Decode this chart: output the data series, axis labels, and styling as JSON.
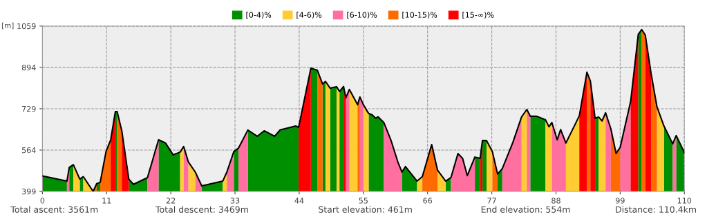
{
  "chart_data": {
    "type": "area",
    "ylabel": "[m]",
    "xlim": [
      0,
      110
    ],
    "xticks": [
      0,
      11,
      22,
      33,
      44,
      55,
      66,
      77,
      88,
      99,
      110
    ],
    "ylim": [
      399,
      1059
    ],
    "yticks": [
      399,
      564,
      729,
      894,
      1059
    ],
    "grid": true,
    "legend": "top",
    "annotations": [
      "Total ascent: 3561m",
      "Total descent: 3469m",
      "Start elevation: 461m",
      "End elevation: 554m",
      "Distance: 110.4km"
    ],
    "series": [
      {
        "name": "[0-4)%",
        "color": "#008f00",
        "x": [
          0,
          4.2,
          null,
          4.6,
          5.3,
          null,
          6.4,
          7.0,
          null,
          9.3,
          9.9,
          null,
          12.5,
          12.8,
          null,
          14.8,
          15.6,
          18.0,
          null,
          19.9,
          21.1,
          22.4,
          23.6,
          null,
          27.3,
          30.9,
          null,
          32.8,
          33.6,
          null,
          35.2,
          36.8,
          38.0,
          39.8,
          40.7,
          43.4,
          43.9,
          null,
          46.0,
          47.1,
          null,
          48.0,
          48.5,
          null,
          49.3,
          50.4,
          null,
          50.9,
          51.6,
          null,
          55.9,
          56.5,
          57.1,
          57.5,
          58.5,
          null,
          61.6,
          62.2,
          64.2,
          null,
          69.1,
          70.0,
          null,
          74.1,
          75.0,
          null,
          75.4,
          76.1,
          null,
          78.0,
          78.8,
          null,
          83.6,
          84.7,
          86.2,
          null,
          94.7,
          95.3,
          null,
          102.1,
          102.7,
          null,
          106.5,
          108.0,
          null,
          108.6,
          110.0
        ],
        "values": [
          461,
          440,
          null,
          495,
          506,
          null,
          448,
          458,
          null,
          430,
          435,
          null,
          718,
          718,
          null,
          448,
          427,
          454,
          null,
          605,
          592,
          545,
          556,
          null,
          421,
          440,
          null,
          558,
          572,
          null,
          644,
          619,
          641,
          619,
          644,
          660,
          655,
          null,
          891,
          883,
          null,
          828,
          838,
          null,
          811,
          817,
          null,
          798,
          818,
          null,
          710,
          705,
          691,
          697,
          674,
          null,
          476,
          498,
          440,
          null,
          440,
          454,
          null,
          536,
          531,
          null,
          602,
          602,
          null,
          468,
          490,
          null,
          699,
          699,
          685,
          null,
          691,
          696,
          null,
          1026,
          1045,
          null,
          660,
          589,
          null,
          622,
          554
        ]
      },
      {
        "name": "[4-6)%",
        "color": "#ffcc33",
        "x": [
          5.3,
          6.4,
          null,
          7.0,
          8.7,
          null,
          23.6,
          24.2,
          null,
          25.0,
          26.2,
          null,
          30.9,
          31.6,
          null,
          48.5,
          49.3,
          null,
          50.4,
          50.9,
          null,
          52.6,
          54.0,
          null,
          55.0,
          55.9,
          null,
          64.2,
          65.1,
          null,
          67.7,
          69.1,
          null,
          76.1,
          77.1,
          null,
          82.1,
          83.0,
          null,
          86.2,
          86.8,
          87.3,
          null,
          89.7,
          90.8,
          92.0,
          null,
          95.3,
          95.9,
          96.5,
          null,
          105.3,
          106.5
        ],
        "values": [
          506,
          448,
          null,
          458,
          399,
          null,
          556,
          578,
          null,
          517,
          476,
          null,
          440,
          476,
          null,
          838,
          811,
          null,
          817,
          798,
          null,
          806,
          745,
          null,
          745,
          710,
          null,
          440,
          458,
          null,
          484,
          440,
          null,
          602,
          558,
          null,
          696,
          726,
          null,
          685,
          657,
          674,
          null,
          592,
          644,
          701,
          null,
          696,
          680,
          713,
          null,
          737,
          660
        ]
      },
      {
        "name": "[6-10)%",
        "color": "#ff6f9f",
        "x": [
          4.2,
          4.6,
          null,
          18.0,
          19.9,
          null,
          24.2,
          25.0,
          null,
          26.2,
          27.3,
          null,
          31.6,
          32.8,
          null,
          33.6,
          35.2,
          null,
          52.0,
          52.6,
          null,
          54.4,
          55.0,
          null,
          58.5,
          59.7,
          60.9,
          61.6,
          null,
          70.0,
          71.2,
          72.0,
          72.8,
          74.1,
          null,
          78.8,
          80.6,
          82.1,
          null,
          83.0,
          83.6,
          null,
          87.3,
          88.2,
          88.8,
          89.7,
          null,
          96.5,
          97.4,
          null,
          99.0,
          100.8,
          null,
          108.0,
          108.6
        ],
        "values": [
          440,
          495,
          null,
          454,
          605,
          null,
          578,
          517,
          null,
          476,
          421,
          null,
          476,
          558,
          null,
          572,
          644,
          null,
          773,
          806,
          null,
          776,
          745,
          null,
          674,
          605,
          517,
          476,
          null,
          454,
          550,
          531,
          462,
          536,
          null,
          490,
          594,
          696,
          null,
          726,
          699,
          null,
          674,
          605,
          646,
          592,
          null,
          713,
          649,
          null,
          575,
          759,
          null,
          589,
          622
        ]
      },
      {
        "name": "[10-15)%",
        "color": "#ff6a00",
        "x": [
          8.7,
          9.3,
          null,
          9.9,
          10.9,
          11.7,
          null,
          12.8,
          13.6,
          null,
          47.1,
          48.0,
          null,
          54.0,
          54.4,
          null,
          65.1,
          66.7,
          67.7,
          null,
          77.1,
          78.0,
          null,
          93.3,
          93.9,
          null,
          97.4,
          98.3,
          99.0,
          null,
          102.7,
          103.3,
          null,
          104.3,
          105.3
        ],
        "values": [
          399,
          430,
          null,
          435,
          558,
          605,
          null,
          718,
          641,
          null,
          883,
          828,
          null,
          745,
          776,
          null,
          458,
          586,
          484,
          null,
          558,
          468,
          null,
          875,
          839,
          null,
          649,
          550,
          575,
          null,
          1045,
          1023,
          null,
          869,
          737
        ]
      },
      {
        "name": "[15-∞)%",
        "color": "#ff0000",
        "x": [
          11.7,
          12.5,
          null,
          13.6,
          14.8,
          null,
          43.9,
          46.0,
          null,
          51.6,
          52.0,
          null,
          75.0,
          75.4,
          null,
          92.0,
          93.3,
          null,
          93.9,
          94.7,
          null,
          100.8,
          102.1,
          null,
          103.3,
          104.3
        ],
        "values": [
          605,
          718,
          null,
          641,
          448,
          null,
          655,
          891,
          null,
          818,
          773,
          null,
          531,
          602,
          null,
          701,
          875,
          null,
          839,
          691,
          null,
          759,
          1026,
          null,
          1023,
          869
        ]
      },
      {
        "color": "#000000",
        "type": "line",
        "x": [
          0,
          4.2,
          4.6,
          5.3,
          6.4,
          7.0,
          8.7,
          9.3,
          9.9,
          10.9,
          11.7,
          12.5,
          12.8,
          13.6,
          14.8,
          15.6,
          18.0,
          19.9,
          21.1,
          22.4,
          23.6,
          24.2,
          25.0,
          26.2,
          27.3,
          30.9,
          31.6,
          32.8,
          33.6,
          35.2,
          36.8,
          38.0,
          39.8,
          40.7,
          43.4,
          43.9,
          46.0,
          47.1,
          48.0,
          48.5,
          49.3,
          50.4,
          50.9,
          51.6,
          52.0,
          52.6,
          54.0,
          54.4,
          55.0,
          55.9,
          56.5,
          57.1,
          57.5,
          58.5,
          59.7,
          60.9,
          61.6,
          62.2,
          64.2,
          65.1,
          66.7,
          67.7,
          69.1,
          70.0,
          71.2,
          72.0,
          72.8,
          74.1,
          75.0,
          75.4,
          76.1,
          77.1,
          78.0,
          78.8,
          80.6,
          82.1,
          83.0,
          83.6,
          84.7,
          86.2,
          86.8,
          87.3,
          88.2,
          88.8,
          89.7,
          90.8,
          92.0,
          93.3,
          93.9,
          94.7,
          95.3,
          95.9,
          96.5,
          97.4,
          98.3,
          99.0,
          100.8,
          102.1,
          102.7,
          103.3,
          104.3,
          105.3,
          106.5,
          108.0,
          108.6,
          110.0
        ],
        "values": [
          461,
          440,
          495,
          506,
          448,
          458,
          399,
          430,
          435,
          558,
          605,
          718,
          718,
          641,
          448,
          427,
          454,
          605,
          592,
          545,
          556,
          578,
          517,
          476,
          421,
          440,
          476,
          558,
          572,
          644,
          619,
          641,
          619,
          644,
          660,
          655,
          891,
          883,
          828,
          838,
          811,
          817,
          798,
          818,
          773,
          806,
          745,
          776,
          745,
          710,
          705,
          691,
          697,
          674,
          605,
          517,
          476,
          498,
          440,
          458,
          586,
          484,
          440,
          454,
          550,
          531,
          462,
          536,
          531,
          602,
          602,
          558,
          468,
          490,
          594,
          696,
          726,
          699,
          699,
          685,
          657,
          674,
          605,
          646,
          592,
          644,
          701,
          875,
          839,
          691,
          696,
          680,
          713,
          649,
          550,
          575,
          759,
          1026,
          1045,
          1023,
          869,
          737,
          660,
          589,
          622,
          554
        ]
      }
    ]
  }
}
